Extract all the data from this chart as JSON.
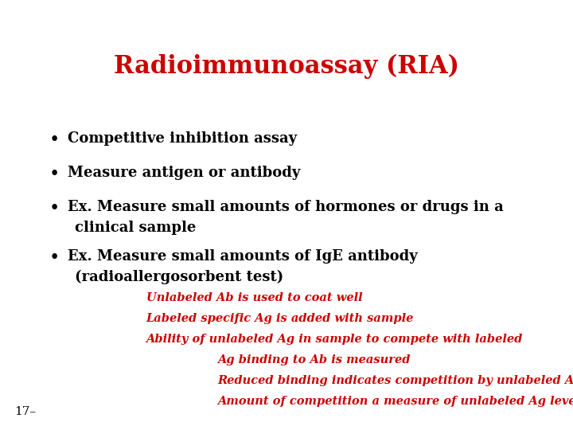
{
  "title": "Radioimmunoassay (RIA)",
  "title_color": "#CC0000",
  "title_fontsize": 22,
  "background_color": "#FFFFFF",
  "bullet_color": "#000000",
  "bullet_fontsize": 13,
  "bullets": [
    [
      "Competitive inhibition assay"
    ],
    [
      "Measure antigen or antibody"
    ],
    [
      "Ex. Measure small amounts of hormones or drugs in a",
      "    clinical sample"
    ],
    [
      "Ex. Measure small amounts of IgE antibody",
      "    (radioallergosorbent test)"
    ]
  ],
  "red_lines": [
    {
      "text": "Unlabeled Ab is used to coat well",
      "indent": 0.255
    },
    {
      "text": "Labeled specific Ag is added with sample",
      "indent": 0.255
    },
    {
      "text": "Ability of unlabeled Ag in sample to compete with labeled",
      "indent": 0.255
    },
    {
      "text": "Ag binding to Ab is measured",
      "indent": 0.38
    },
    {
      "text": "Reduced binding indicates competition by unlabeled Ag in sample",
      "indent": 0.38
    },
    {
      "text": "Amount of competition a measure of unlabeled Ag levels",
      "indent": 0.38
    }
  ],
  "red_fontsize": 10.5,
  "red_color": "#CC0000",
  "page_number": "17–",
  "page_color": "#000000",
  "page_fontsize": 11
}
